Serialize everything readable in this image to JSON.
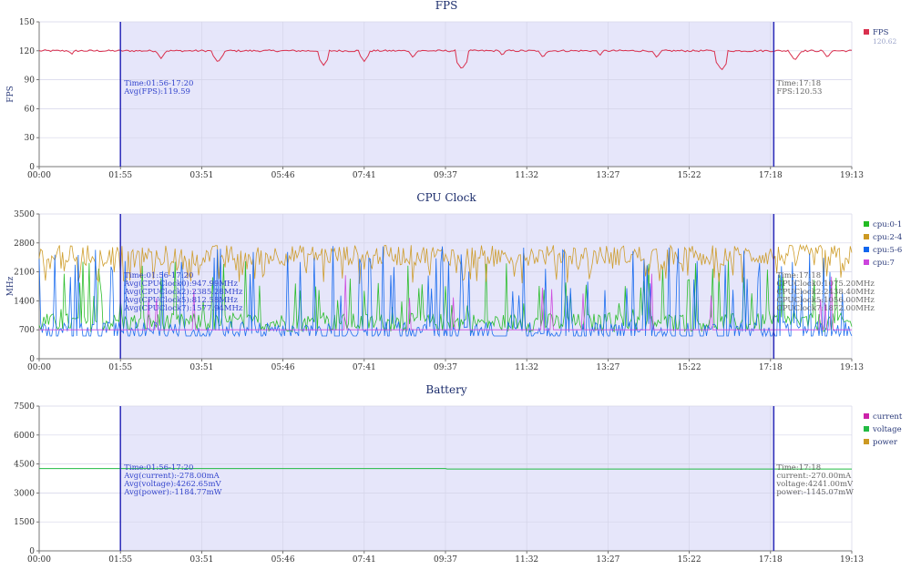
{
  "chart_data": [
    {
      "type": "line",
      "title": "FPS",
      "ylabel": "FPS",
      "ylim": [
        0,
        150
      ],
      "yticks": [
        "0",
        "30",
        "60",
        "90",
        "120",
        "150"
      ],
      "xticks": [
        "00:00",
        "01:55",
        "03:51",
        "05:46",
        "07:41",
        "09:37",
        "11:32",
        "13:27",
        "15:22",
        "17:18",
        "19:13"
      ],
      "grid": true,
      "legend_position": "right",
      "series": [
        {
          "name": "FPS",
          "color": "#d9304e",
          "base": 120,
          "noise": 2,
          "dips": [
            [
              4,
              116
            ],
            [
              15,
              112
            ],
            [
              22,
              108
            ],
            [
              35,
              105
            ],
            [
              40,
              109
            ],
            [
              46,
              113
            ],
            [
              52,
              101
            ],
            [
              57,
              115
            ],
            [
              62,
              113
            ],
            [
              69,
              115
            ],
            [
              76,
              113
            ],
            [
              84,
              100
            ],
            [
              93,
              110
            ],
            [
              97,
              113
            ]
          ],
          "legend_value": "120.62"
        }
      ],
      "selection": {
        "from_pct": 10.0,
        "to_pct": 90.4
      },
      "left_annotation": {
        "lines": [
          "Time:01:56-17:20",
          "Avg(FPS):119.59"
        ],
        "color": "#3344cc"
      },
      "right_annotation": {
        "lines": [
          "Time:17:18",
          "FPS:120.53"
        ],
        "color": "#666666"
      }
    },
    {
      "type": "line",
      "title": "CPU Clock",
      "ylabel": "MHz",
      "ylim": [
        0,
        3500
      ],
      "yticks": [
        "0",
        "700",
        "1400",
        "2100",
        "2800",
        "3500"
      ],
      "xticks": [
        "00:00",
        "01:55",
        "03:51",
        "05:46",
        "07:41",
        "09:37",
        "11:32",
        "13:27",
        "15:22",
        "17:18",
        "19:13"
      ],
      "grid": true,
      "legend_position": "right",
      "series": [
        {
          "name": "cpu:0-1",
          "color": "#22bb22",
          "pattern": "green"
        },
        {
          "name": "cpu:2-4",
          "color": "#cc9922",
          "pattern": "orange"
        },
        {
          "name": "cpu:5-6",
          "color": "#1166ee",
          "pattern": "blue"
        },
        {
          "name": "cpu:7",
          "color": "#cc44dd",
          "pattern": "purple"
        }
      ],
      "selection": {
        "from_pct": 10.0,
        "to_pct": 90.4
      },
      "left_annotation": {
        "lines": [
          "Time:01:56-17:20",
          "Avg(CPUClock0):947.99MHz",
          "Avg(CPUClock2):2385.28MHz",
          "Avg(CPUClock5):812.58MHz",
          "Avg(CPUClock7):1577.94MHz"
        ],
        "color": "#3344cc"
      },
      "right_annotation": {
        "lines": [
          "Time:17:18",
          "CPUClock0:1075.20MHz",
          "CPUClock2:2438.40MHz",
          "CPUClock5:1056.00MHz",
          "CPUClock7:1872.00MHz"
        ],
        "color": "#666666"
      }
    },
    {
      "type": "line",
      "title": "Battery",
      "ylabel": "",
      "ylim": [
        0,
        7500
      ],
      "yticks": [
        "0",
        "1500",
        "3000",
        "4500",
        "6000",
        "7500"
      ],
      "xticks": [
        "00:00",
        "01:55",
        "03:51",
        "05:46",
        "07:41",
        "09:37",
        "11:32",
        "13:27",
        "15:22",
        "17:18",
        "19:13"
      ],
      "grid": true,
      "legend_position": "right",
      "series": [
        {
          "name": "current",
          "color": "#cc22aa",
          "flat": -278
        },
        {
          "name": "voltage",
          "color": "#22bb44",
          "flat": 4262
        },
        {
          "name": "power",
          "color": "#cc9922",
          "flat": -1184
        }
      ],
      "selection": {
        "from_pct": 10.0,
        "to_pct": 90.4
      },
      "left_annotation": {
        "lines": [
          "Time:01:56-17:20",
          "Avg(current):-278.00mA",
          "Avg(voltage):4262.65mV",
          "Avg(power):-1184.77mW"
        ],
        "color": "#3344cc"
      },
      "right_annotation": {
        "lines": [
          "Time:17:18",
          "current:-270.00mA",
          "voltage:4241.00mV",
          "power:-1145.07mW"
        ],
        "color": "#666666"
      }
    }
  ]
}
